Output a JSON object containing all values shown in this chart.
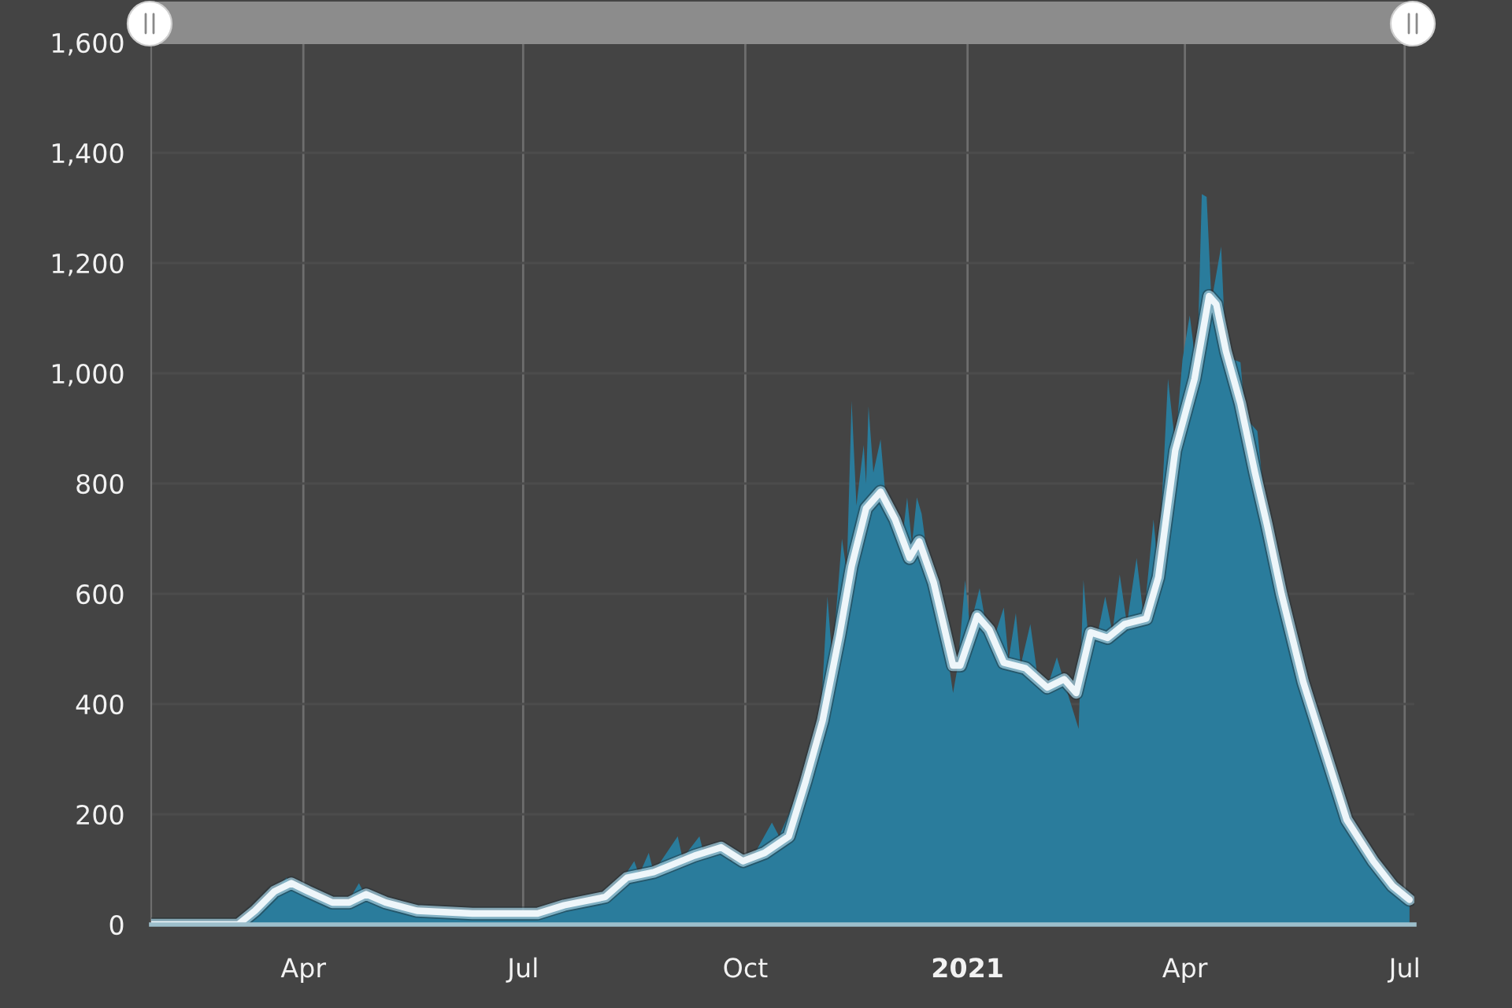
{
  "chart_data": {
    "type": "area",
    "series": [
      {
        "color": "#2a7c9c",
        "x": [
          "2020-01-29",
          "2020-03-05",
          "2020-03-09",
          "2020-03-14",
          "2020-03-20",
          "2020-03-25",
          "2020-03-28",
          "2020-04-03",
          "2020-04-10",
          "2020-04-15",
          "2020-04-20",
          "2020-04-24",
          "2020-04-27",
          "2020-05-05",
          "2020-05-15",
          "2020-06-01",
          "2020-06-20",
          "2020-07-01",
          "2020-07-10",
          "2020-07-20",
          "2020-08-01",
          "2020-08-10",
          "2020-08-16",
          "2020-08-18",
          "2020-08-22",
          "2020-08-24",
          "2020-09-03",
          "2020-09-05",
          "2020-09-12",
          "2020-09-14",
          "2020-09-21",
          "2020-09-25",
          "2020-10-01",
          "2020-10-05",
          "2020-10-12",
          "2020-10-15",
          "2020-10-22",
          "2020-10-26",
          "2020-11-01",
          "2020-11-04",
          "2020-11-06",
          "2020-11-10",
          "2020-11-12",
          "2020-11-14",
          "2020-11-16",
          "2020-11-19",
          "2020-11-20",
          "2020-11-21",
          "2020-11-23",
          "2020-11-26",
          "2020-11-28",
          "2020-12-02",
          "2020-12-05",
          "2020-12-07",
          "2020-12-09",
          "2020-12-11",
          "2020-12-13",
          "2020-12-15",
          "2020-12-18",
          "2020-12-22",
          "2020-12-26",
          "2020-12-28",
          "2020-12-31",
          "2021-01-02",
          "2021-01-06",
          "2021-01-08",
          "2021-01-12",
          "2021-01-16",
          "2021-01-18",
          "2021-01-21",
          "2021-01-23",
          "2021-01-27",
          "2021-01-30",
          "2021-02-03",
          "2021-02-07",
          "2021-02-10",
          "2021-02-16",
          "2021-02-18",
          "2021-02-20",
          "2021-02-24",
          "2021-02-27",
          "2021-03-02",
          "2021-03-05",
          "2021-03-08",
          "2021-03-12",
          "2021-03-15",
          "2021-03-19",
          "2021-03-21",
          "2021-03-25",
          "2021-03-28",
          "2021-03-31",
          "2021-04-03",
          "2021-04-06",
          "2021-04-08",
          "2021-04-10",
          "2021-04-12",
          "2021-04-16",
          "2021-04-18",
          "2021-04-24",
          "2021-04-26",
          "2021-05-01",
          "2021-05-05",
          "2021-05-11",
          "2021-05-20",
          "2021-05-29",
          "2021-06-07",
          "2021-06-18",
          "2021-06-26",
          "2021-07-03"
        ],
        "values": [
          0,
          0,
          15,
          40,
          60,
          85,
          70,
          55,
          40,
          35,
          45,
          75,
          50,
          35,
          25,
          20,
          15,
          20,
          25,
          35,
          45,
          75,
          115,
          90,
          130,
          95,
          160,
          120,
          160,
          125,
          150,
          115,
          120,
          130,
          185,
          160,
          230,
          280,
          360,
          595,
          480,
          700,
          640,
          950,
          760,
          870,
          800,
          940,
          820,
          880,
          780,
          740,
          700,
          775,
          690,
          775,
          745,
          680,
          620,
          540,
          420,
          470,
          625,
          540,
          610,
          560,
          520,
          575,
          480,
          565,
          470,
          545,
          450,
          430,
          485,
          440,
          355,
          625,
          520,
          530,
          595,
          530,
          635,
          545,
          665,
          555,
          735,
          640,
          990,
          870,
          1025,
          1105,
          1000,
          1325,
          1320,
          1130,
          1230,
          1030,
          1020,
          920,
          895,
          720,
          600,
          440,
          315,
          190,
          115,
          70,
          45
        ]
      },
      {
        "type": "line",
        "color": "#eef6fa",
        "x": [
          "2020-01-29",
          "2020-03-05",
          "2020-03-12",
          "2020-03-20",
          "2020-03-27",
          "2020-04-03",
          "2020-04-13",
          "2020-04-20",
          "2020-04-27",
          "2020-05-05",
          "2020-05-18",
          "2020-06-10",
          "2020-07-07",
          "2020-07-18",
          "2020-08-04",
          "2020-08-13",
          "2020-08-24",
          "2020-09-10",
          "2020-09-21",
          "2020-09-30",
          "2020-10-09",
          "2020-10-19",
          "2020-10-26",
          "2020-11-02",
          "2020-11-09",
          "2020-11-14",
          "2020-11-20",
          "2020-11-26",
          "2020-12-02",
          "2020-12-08",
          "2020-12-12",
          "2020-12-18",
          "2020-12-26",
          "2020-12-29",
          "2021-01-05",
          "2021-01-10",
          "2021-01-16",
          "2021-01-25",
          "2021-02-03",
          "2021-02-10",
          "2021-02-15",
          "2021-02-21",
          "2021-02-28",
          "2021-03-07",
          "2021-03-16",
          "2021-03-21",
          "2021-03-28",
          "2021-04-05",
          "2021-04-11",
          "2021-04-14",
          "2021-04-18",
          "2021-04-24",
          "2021-04-30",
          "2021-05-05",
          "2021-05-11",
          "2021-05-20",
          "2021-05-29",
          "2021-06-07",
          "2021-06-18",
          "2021-06-26",
          "2021-07-03"
        ],
        "values": [
          0,
          0,
          25,
          60,
          75,
          60,
          40,
          40,
          55,
          40,
          25,
          20,
          20,
          35,
          50,
          85,
          95,
          125,
          140,
          115,
          130,
          160,
          260,
          370,
          525,
          650,
          755,
          785,
          735,
          665,
          695,
          620,
          470,
          470,
          560,
          535,
          475,
          465,
          430,
          445,
          420,
          530,
          520,
          545,
          555,
          630,
          860,
          990,
          1140,
          1125,
          1040,
          945,
          820,
          725,
          600,
          440,
          315,
          190,
          115,
          70,
          45
        ]
      }
    ],
    "xlim": [
      "2020-01-29",
      "2021-07-05"
    ],
    "xticks": [
      {
        "value": "2020-04-01",
        "label": "Apr"
      },
      {
        "value": "2020-07-01",
        "label": "Jul"
      },
      {
        "value": "2020-10-01",
        "label": "Oct"
      },
      {
        "value": "2021-01-01",
        "label": "2021"
      },
      {
        "value": "2021-04-01",
        "label": "Apr"
      },
      {
        "value": "2021-07-01",
        "label": "Jul"
      }
    ],
    "ylim": [
      0,
      1600
    ],
    "yticks": [
      0,
      200,
      400,
      600,
      800,
      {
        "value": 1000,
        "label": "1,000"
      },
      {
        "value": 1200,
        "label": "1,200"
      },
      {
        "value": 1400,
        "label": "1,400"
      },
      {
        "value": 1600,
        "label": "1,600"
      }
    ],
    "grid": true
  }
}
